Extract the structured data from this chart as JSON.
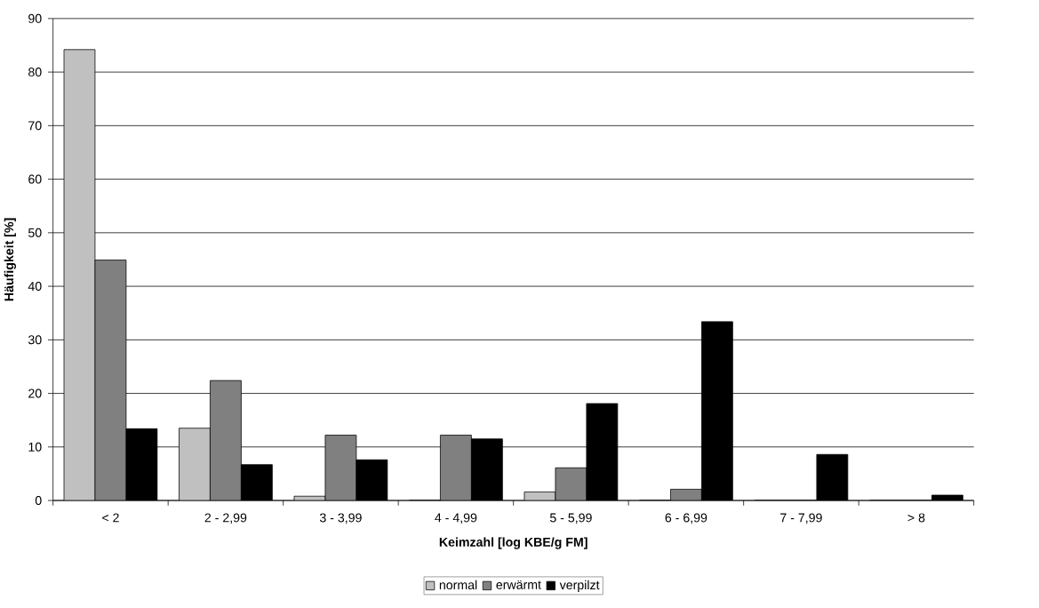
{
  "chart_data": {
    "type": "bar",
    "xlabel": "Keimzahl [log KBE/g FM]",
    "ylabel": "Häufigkeit [%]",
    "categories": [
      "< 2",
      "2 - 2,99",
      "3 - 3,99",
      "4 - 4,99",
      "5 - 5,99",
      "6 - 6,99",
      "7 - 7,99",
      "> 8"
    ],
    "series": [
      {
        "name": "normal",
        "color": "#c0c0c0",
        "values": [
          84.2,
          13.5,
          0.8,
          0,
          1.6,
          0,
          0,
          0
        ]
      },
      {
        "name": "erwärmt",
        "color": "#808080",
        "values": [
          44.9,
          22.4,
          12.2,
          12.2,
          6.1,
          2.1,
          0,
          0
        ]
      },
      {
        "name": "verpilzt",
        "color": "#000000",
        "values": [
          13.4,
          6.7,
          7.6,
          11.5,
          18.1,
          33.4,
          8.6,
          1.0
        ]
      }
    ],
    "ylim": [
      0,
      90
    ],
    "yticks": [
      0,
      10,
      20,
      30,
      40,
      50,
      60,
      70,
      80,
      90
    ],
    "grid": "y",
    "legend": "bottom"
  }
}
